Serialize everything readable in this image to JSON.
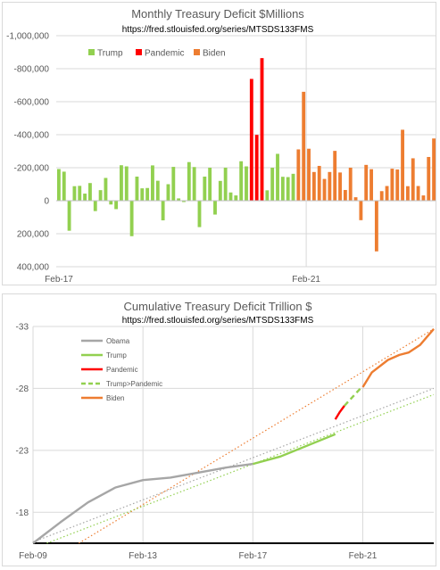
{
  "chart_data": [
    {
      "type": "bar",
      "title": "Monthly Treasury Deficit $Millions",
      "subtitle": "https://fred.stlouisfed.org/series/MTSDS133FMS",
      "xlabel": "",
      "ylabel": "",
      "y_reversed": true,
      "ylim": [
        -1000000,
        400000
      ],
      "y_ticks": [
        -1000000,
        -800000,
        -600000,
        -400000,
        -200000,
        0,
        200000,
        400000
      ],
      "y_tick_labels": [
        "-1,000,000",
        "-800,000",
        "-600,000",
        "-400,000",
        "-200,000",
        "0",
        "200,000",
        "400,000"
      ],
      "x_tick_labels": [
        "Feb-17",
        "Feb-21"
      ],
      "x_start": "2017-02",
      "legend_position": "top-left",
      "grid": true,
      "colors": {
        "Trump": "#92d050",
        "Pandemic": "#ff0000",
        "Biden": "#ed7d31"
      },
      "series": [
        {
          "name": "Trump",
          "values": [
            -192000,
            -176000,
            182000,
            -88000,
            -90000,
            -43000,
            -107000,
            63000,
            -64000,
            -138000,
            23000,
            51000,
            -215000,
            -208000,
            215000,
            -146000,
            -75000,
            -77000,
            -214000,
            -121000,
            119000,
            -100000,
            -205000,
            -14000,
            8000,
            -234000,
            -204000,
            160000,
            -146000,
            -200000,
            84000,
            -120000,
            -200000,
            -50000,
            -32000,
            -239000,
            -208000
          ]
        },
        {
          "name": "Pandemic",
          "values": [
            -738000,
            -399000,
            -864000
          ]
        },
        {
          "name": "Trump",
          "values": [
            -63000,
            -200000,
            -284000,
            -145000,
            -143000,
            -163000
          ]
        },
        {
          "name": "Biden",
          "values": [
            -311000,
            -660000,
            -315000,
            -174000,
            -211000,
            -132000,
            -174000,
            -302000,
            -171000,
            -65000,
            -200000,
            -21000,
            118000,
            -217000,
            -191000,
            307000,
            -58000,
            -89000,
            -194000,
            -189000,
            -430000,
            -88000,
            -257000,
            -89000,
            -32000,
            -265000,
            -377000
          ]
        }
      ]
    },
    {
      "type": "line",
      "title": "Cumulative Treasury Deficit Trillion $",
      "subtitle": "https://fred.stlouisfed.org/series/MTSDS133FMS",
      "xlabel": "",
      "ylabel": "",
      "y_reversed": true,
      "ylim": [
        -15.5,
        -33
      ],
      "y_ticks": [
        -33,
        -28,
        -23,
        -18
      ],
      "x_ticks": [
        "Feb-09",
        "Feb-13",
        "Feb-17",
        "Feb-21"
      ],
      "x_range": [
        "2009-02",
        "2023-09"
      ],
      "legend_position": "top-left",
      "grid": true,
      "series": [
        {
          "name": "Obama",
          "color": "#a6a6a6",
          "style": "solid",
          "x": [
            "2009-02",
            "2010-02",
            "2011-02",
            "2012-02",
            "2013-02",
            "2014-02",
            "2015-02",
            "2016-02",
            "2017-02"
          ],
          "y": [
            -15.5,
            -17.2,
            -18.8,
            -20.0,
            -20.6,
            -20.8,
            -21.2,
            -21.6,
            -21.9
          ]
        },
        {
          "name": "Trump",
          "color": "#92d050",
          "style": "solid",
          "x": [
            "2017-02",
            "2018-02",
            "2019-02",
            "2020-02"
          ],
          "y": [
            -21.9,
            -22.5,
            -23.4,
            -24.3
          ]
        },
        {
          "name": "Pandemic",
          "color": "#ff0000",
          "style": "solid",
          "x": [
            "2020-02",
            "2020-04",
            "2020-06"
          ],
          "y": [
            -25.5,
            -26.1,
            -26.6
          ]
        },
        {
          "name": "Trump>Pandemic",
          "color": "#92d050",
          "style": "dashed",
          "x": [
            "2020-06",
            "2021-01"
          ],
          "y": [
            -26.6,
            -28.0
          ]
        },
        {
          "name": "Biden",
          "color": "#ed7d31",
          "style": "solid",
          "x": [
            "2021-02",
            "2021-06",
            "2022-01",
            "2022-06",
            "2022-10",
            "2023-03",
            "2023-09"
          ],
          "y": [
            -28.1,
            -29.3,
            -30.3,
            -30.7,
            -30.9,
            -31.5,
            -32.8
          ]
        }
      ],
      "trendlines": [
        {
          "color": "#ed7d31",
          "x": [
            "2010-10",
            "2023-09"
          ],
          "y": [
            -15.5,
            -32.8
          ]
        },
        {
          "color": "#a6a6a6",
          "x": [
            "2009-02",
            "2023-09"
          ],
          "y": [
            -15.6,
            -28.0
          ]
        },
        {
          "color": "#92d050",
          "x": [
            "2009-08",
            "2023-09"
          ],
          "y": [
            -15.5,
            -27.5
          ]
        }
      ]
    }
  ]
}
